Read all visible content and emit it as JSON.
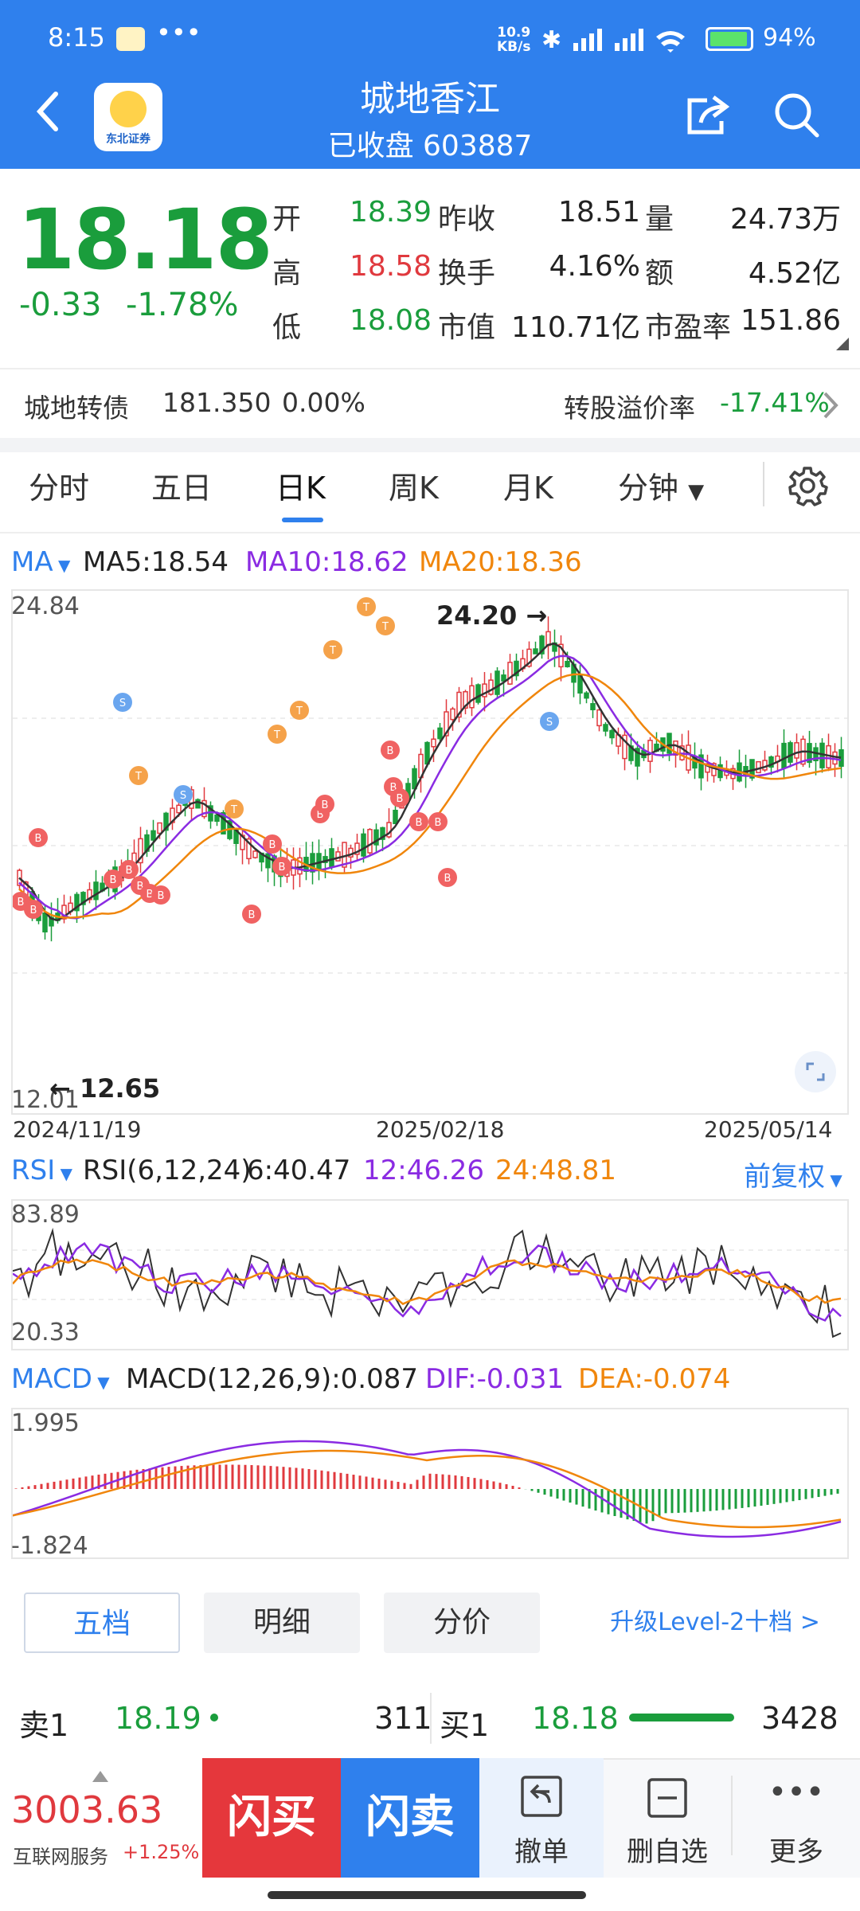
{
  "status": {
    "time": "8:15",
    "dots": "•••",
    "net_speed": "10.9",
    "net_unit": "KB/s",
    "battery": "94%",
    "colors": {
      "header": "#2f80ed"
    }
  },
  "header": {
    "back_icon": "chevron-left-icon",
    "logo_text": "东北证券",
    "title": "城地香江",
    "subtitle": "已收盘 603887"
  },
  "quote": {
    "price": "18.18",
    "change": "-0.33",
    "change_pct": "-1.78%",
    "rows": [
      [
        {
          "label": "开",
          "value": "18.39",
          "color": "green"
        },
        {
          "label": "昨收",
          "value": "18.51",
          "color": "dark"
        },
        {
          "label": "量",
          "value": "24.73万",
          "color": "dark"
        }
      ],
      [
        {
          "label": "高",
          "value": "18.58",
          "color": "red"
        },
        {
          "label": "换手",
          "value": "4.16%",
          "color": "dark"
        },
        {
          "label": "额",
          "value": "4.52亿",
          "color": "dark"
        }
      ],
      [
        {
          "label": "低",
          "value": "18.08",
          "color": "green"
        },
        {
          "label": "市值",
          "value": "110.71亿",
          "color": "dark"
        },
        {
          "label": "市盈率",
          "value": "151.86",
          "color": "dark"
        }
      ]
    ]
  },
  "convertible": {
    "name": "城地转债",
    "price": "181.350",
    "pct": "0.00%",
    "premium_label": "转股溢价率",
    "premium_value": "-17.41%"
  },
  "tabs": [
    "分时",
    "五日",
    "日K",
    "周K",
    "月K",
    "分钟"
  ],
  "kline": {
    "ma_label": "MA",
    "ma5": "MA5:18.54",
    "ma10": "MA10:18.62",
    "ma20": "MA20:18.36",
    "y_top": "24.84",
    "y_bottom": "12.01",
    "high_label": "24.20",
    "low_label": "12.65",
    "dates": [
      "2024/11/19",
      "2025/02/18",
      "2025/05/14"
    ]
  },
  "rsi": {
    "label": "RSI",
    "params": "RSI(6,12,24)",
    "v6": "6:40.47",
    "v12": "12:46.26",
    "v24": "24:48.81",
    "adj": "前复权",
    "y_top": "83.89",
    "y_bottom": "20.33"
  },
  "macd": {
    "label": "MACD",
    "params": "MACD(12,26,9):0.087",
    "dif": "DIF:-0.031",
    "dea": "DEA:-0.074",
    "y_top": "1.995",
    "y_bottom": "-1.824"
  },
  "bottom_tabs": [
    "五档",
    "明细",
    "分价"
  ],
  "level2": "升级Level-2十档 >",
  "orderbook": {
    "sell_label": "卖1",
    "sell_price": "18.19",
    "sell_vol": "311",
    "buy_label": "买1",
    "buy_price": "18.18",
    "buy_vol": "3428"
  },
  "index": {
    "value": "3003.63",
    "name": "互联网服务",
    "pct": "+1.25%"
  },
  "actions": {
    "buy": "闪买",
    "sell": "闪卖",
    "cancel": "撤单",
    "delete": "删自选",
    "more": "更多"
  }
}
